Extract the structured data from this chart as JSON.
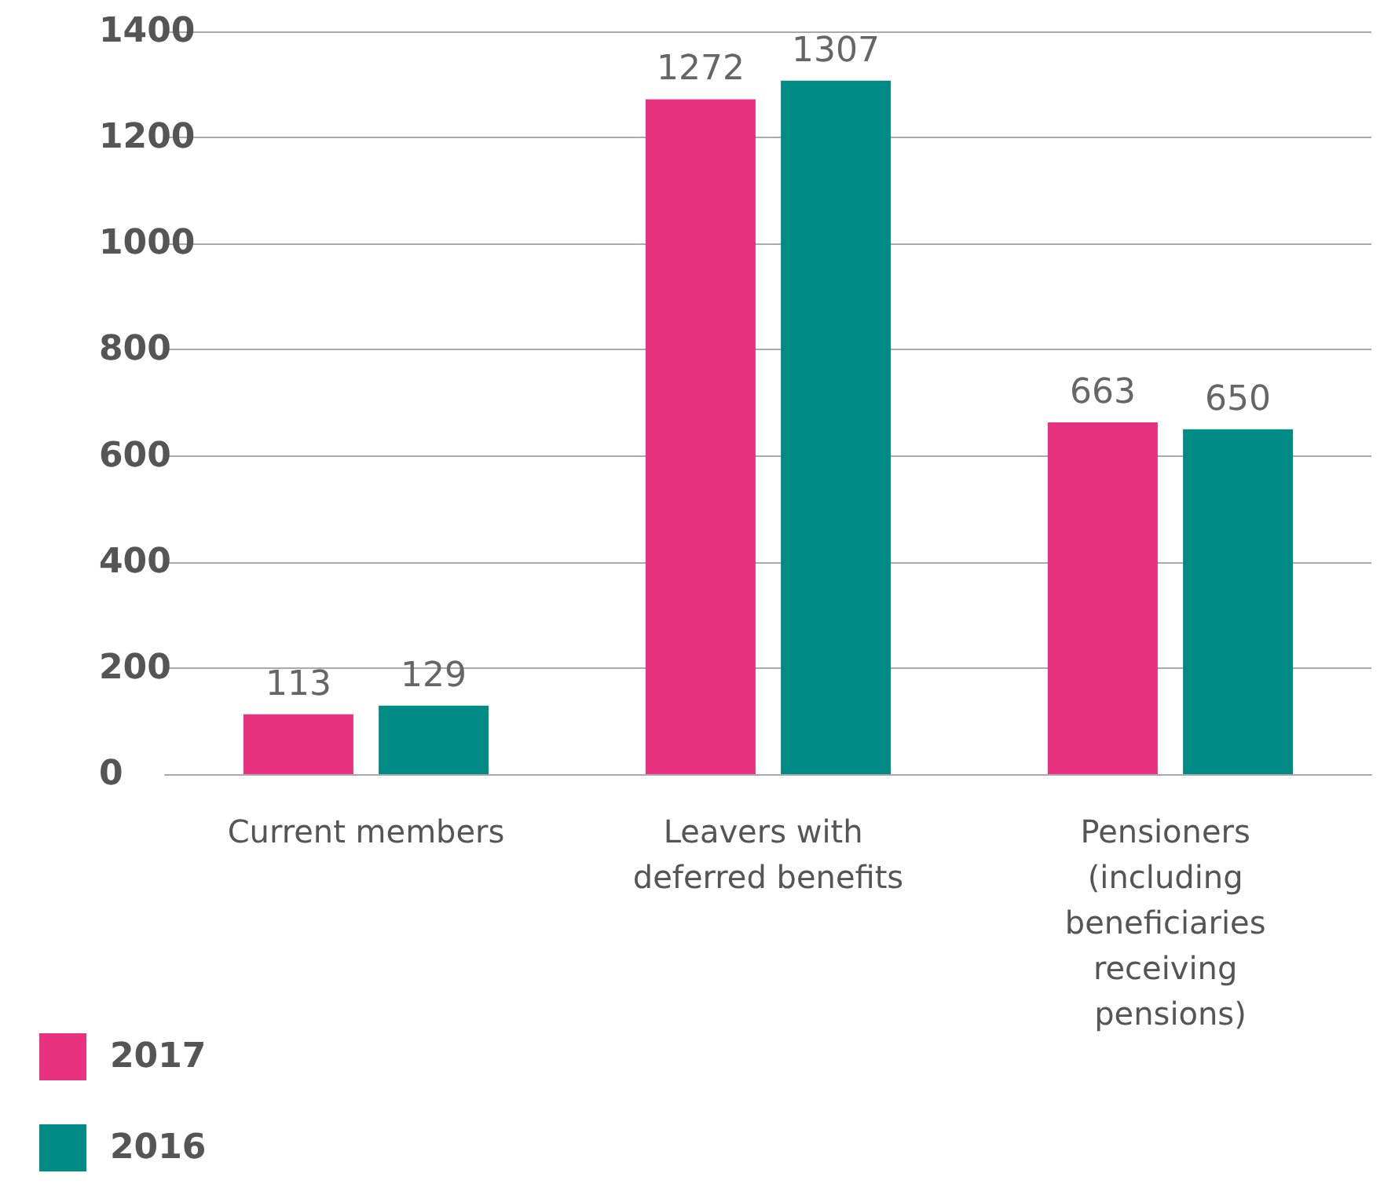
{
  "chart_data": {
    "type": "bar",
    "categories": [
      "Current members",
      "Leavers with deferred benefits",
      "Pensioners (including beneficiaries receiving pensions)"
    ],
    "series": [
      {
        "name": "2017",
        "color": "#e8317f",
        "values": [
          113,
          1272,
          663
        ]
      },
      {
        "name": "2016",
        "color": "#008b87",
        "values": [
          129,
          1307,
          650
        ]
      }
    ],
    "ylim": [
      0,
      1400
    ],
    "yticks": [
      0,
      200,
      400,
      600,
      800,
      1000,
      1200,
      1400
    ],
    "grid": "y",
    "legend": "bottom left",
    "data_labels": true
  }
}
